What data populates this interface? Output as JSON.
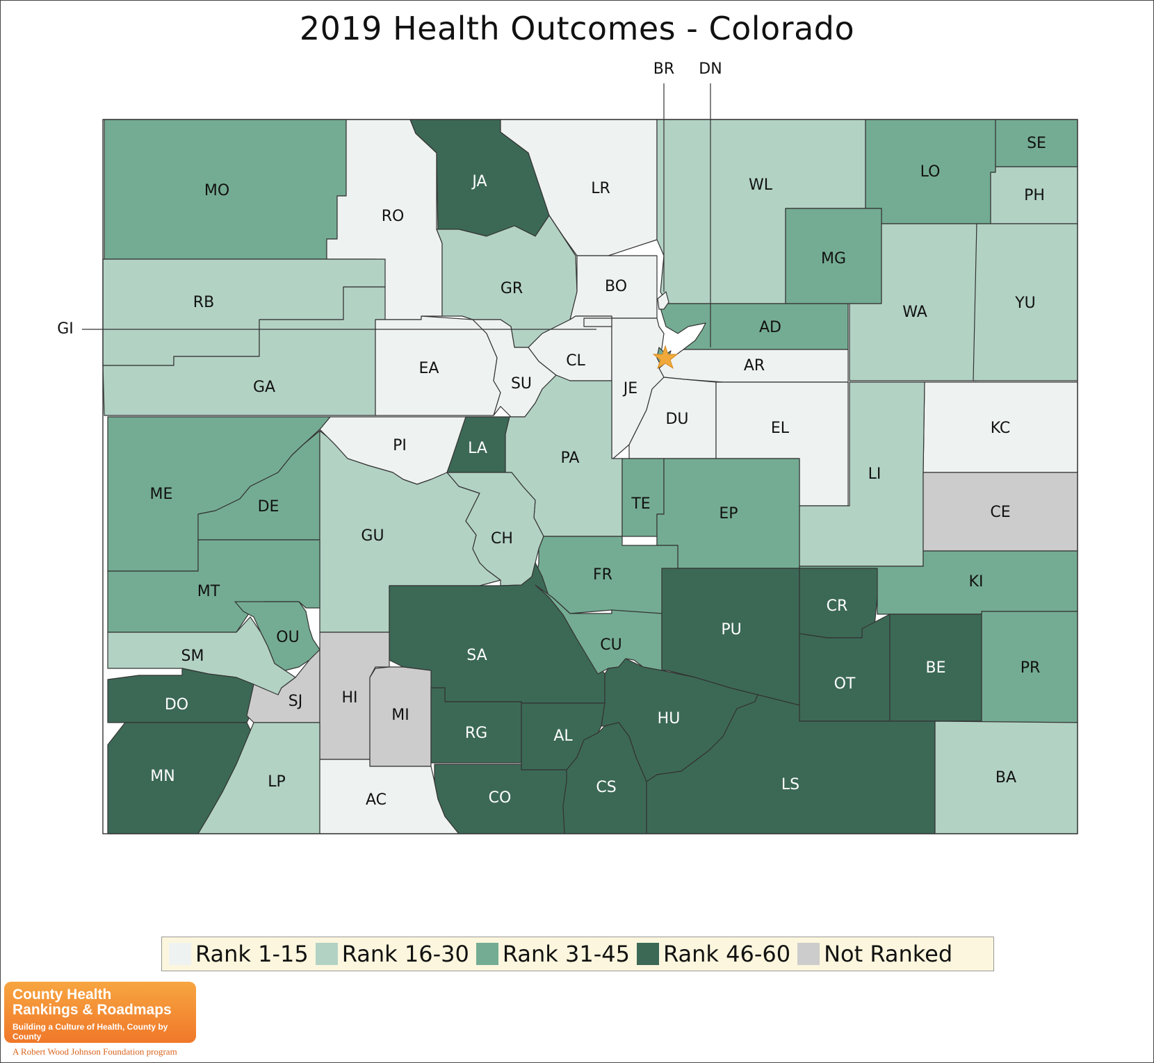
{
  "title": "2019 Health Outcomes - Colorado",
  "colors": {
    "rank_1_15": "#eef2f0",
    "rank_16_30": "#b2d2c4",
    "rank_31_45": "#74ac93",
    "rank_46_60": "#3c6956",
    "not_ranked": "#cccccc"
  },
  "legend": [
    {
      "label": "Rank 1-15",
      "class": "rank_1_15"
    },
    {
      "label": "Rank 16-30",
      "class": "rank_16_30"
    },
    {
      "label": "Rank 31-45",
      "class": "rank_31_45"
    },
    {
      "label": "Rank 46-60",
      "class": "rank_46_60"
    },
    {
      "label": "Not Ranked",
      "class": "not_ranked"
    }
  ],
  "counties": [
    {
      "label": "MO",
      "class": "rank_31_45"
    },
    {
      "label": "RO",
      "class": "rank_1_15"
    },
    {
      "label": "JA",
      "class": "rank_46_60"
    },
    {
      "label": "LR",
      "class": "rank_1_15"
    },
    {
      "label": "WL",
      "class": "rank_16_30"
    },
    {
      "label": "LO",
      "class": "rank_31_45"
    },
    {
      "label": "SE",
      "class": "rank_31_45"
    },
    {
      "label": "PH",
      "class": "rank_16_30"
    },
    {
      "label": "RB",
      "class": "rank_16_30"
    },
    {
      "label": "GR",
      "class": "rank_16_30"
    },
    {
      "label": "BO",
      "class": "rank_1_15"
    },
    {
      "label": "MG",
      "class": "rank_31_45"
    },
    {
      "label": "WA",
      "class": "rank_16_30"
    },
    {
      "label": "YU",
      "class": "rank_16_30"
    },
    {
      "label": "GA",
      "class": "rank_16_30"
    },
    {
      "label": "EA",
      "class": "rank_1_15"
    },
    {
      "label": "SU",
      "class": "rank_1_15"
    },
    {
      "label": "CL",
      "class": "rank_1_15"
    },
    {
      "label": "AD",
      "class": "rank_31_45"
    },
    {
      "label": "AR",
      "class": "rank_1_15"
    },
    {
      "label": "JE",
      "class": "rank_1_15"
    },
    {
      "label": "DU",
      "class": "rank_1_15"
    },
    {
      "label": "EL",
      "class": "rank_1_15"
    },
    {
      "label": "KC",
      "class": "rank_1_15"
    },
    {
      "label": "PI",
      "class": "rank_1_15"
    },
    {
      "label": "LA",
      "class": "rank_46_60"
    },
    {
      "label": "PA",
      "class": "rank_16_30"
    },
    {
      "label": "LI",
      "class": "rank_16_30"
    },
    {
      "label": "ME",
      "class": "rank_31_45"
    },
    {
      "label": "DE",
      "class": "rank_31_45"
    },
    {
      "label": "GU",
      "class": "rank_16_30"
    },
    {
      "label": "CH",
      "class": "rank_16_30"
    },
    {
      "label": "TE",
      "class": "rank_31_45"
    },
    {
      "label": "EP",
      "class": "rank_31_45"
    },
    {
      "label": "CE",
      "class": "not_ranked"
    },
    {
      "label": "MT",
      "class": "rank_31_45"
    },
    {
      "label": "FR",
      "class": "rank_31_45"
    },
    {
      "label": "KI",
      "class": "rank_31_45"
    },
    {
      "label": "OU",
      "class": "rank_31_45"
    },
    {
      "label": "SM",
      "class": "rank_16_30"
    },
    {
      "label": "SA",
      "class": "rank_46_60"
    },
    {
      "label": "CU",
      "class": "rank_31_45"
    },
    {
      "label": "PU",
      "class": "rank_46_60"
    },
    {
      "label": "CR",
      "class": "rank_46_60"
    },
    {
      "label": "OT",
      "class": "rank_46_60"
    },
    {
      "label": "BE",
      "class": "rank_46_60"
    },
    {
      "label": "PR",
      "class": "rank_31_45"
    },
    {
      "label": "DO",
      "class": "rank_46_60"
    },
    {
      "label": "SJ",
      "class": "not_ranked"
    },
    {
      "label": "HI",
      "class": "not_ranked"
    },
    {
      "label": "MI",
      "class": "not_ranked"
    },
    {
      "label": "RG",
      "class": "rank_46_60"
    },
    {
      "label": "AL",
      "class": "rank_46_60"
    },
    {
      "label": "HU",
      "class": "rank_46_60"
    },
    {
      "label": "MN",
      "class": "rank_46_60"
    },
    {
      "label": "LP",
      "class": "rank_16_30"
    },
    {
      "label": "AC",
      "class": "rank_1_15"
    },
    {
      "label": "CO",
      "class": "rank_46_60"
    },
    {
      "label": "CS",
      "class": "rank_46_60"
    },
    {
      "label": "LS",
      "class": "rank_46_60"
    },
    {
      "label": "BA",
      "class": "rank_16_30"
    },
    {
      "label": "BR",
      "class": "rank_1_15"
    },
    {
      "label": "DN",
      "class": "rank_31_45"
    },
    {
      "label": "GI",
      "class": "rank_1_15"
    }
  ],
  "logo": {
    "line1": "County Health",
    "line2": "Rankings & Roadmaps",
    "tagline": "Building a Culture of Health, County by County",
    "foundation": "A Robert Wood Johnson Foundation program"
  }
}
